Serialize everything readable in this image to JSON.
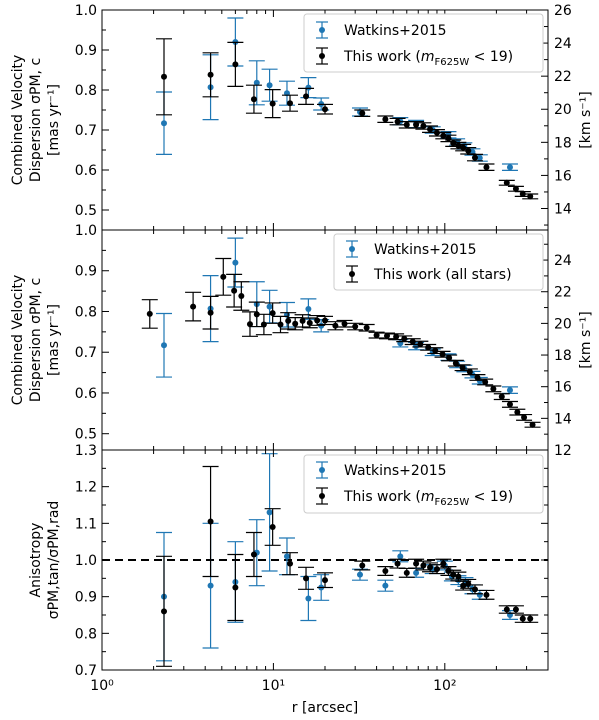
{
  "colors": {
    "watkins": "#1f77b4",
    "this_work": "#000000"
  },
  "chart_data": [
    {
      "type": "scatter",
      "xlim": [
        1,
        400
      ],
      "ylim": [
        0.45,
        1.0
      ],
      "xscale": "log",
      "ylabel_lines": [
        "Combined Velocity",
        "Dispersion σPM, c",
        "[mas yr⁻¹]"
      ],
      "right_ylabel": "[km s⁻¹]",
      "right_ylim": [
        12.7,
        26.0
      ],
      "yticks": [
        "0.5",
        "0.6",
        "0.7",
        "0.8",
        "0.9",
        "1.0"
      ],
      "right_yticks": [
        "14",
        "16",
        "18",
        "20",
        "22",
        "24",
        "26"
      ],
      "legend": {
        "position": "top-right",
        "entries": [
          "Watkins+2015",
          "This work (mF625W < 19)"
        ]
      },
      "series": [
        {
          "name": "Watkins+2015",
          "points": [
            {
              "x": 2.3,
              "y": 0.717,
              "e": 0.078
            },
            {
              "x": 4.3,
              "y": 0.807,
              "e": 0.081
            },
            {
              "x": 6.0,
              "y": 0.92,
              "e": 0.06
            },
            {
              "x": 8.0,
              "y": 0.818,
              "e": 0.055
            },
            {
              "x": 9.5,
              "y": 0.812,
              "e": 0.04
            },
            {
              "x": 12.0,
              "y": 0.792,
              "e": 0.03
            },
            {
              "x": 16.0,
              "y": 0.806,
              "e": 0.025
            },
            {
              "x": 19.0,
              "y": 0.765,
              "e": 0.015
            },
            {
              "x": 32.0,
              "y": 0.745,
              "e": 0.01
            },
            {
              "x": 55.0,
              "y": 0.722,
              "e": 0.009
            },
            {
              "x": 68.0,
              "y": 0.715,
              "e": 0.009
            },
            {
              "x": 85.0,
              "y": 0.7,
              "e": 0.008
            },
            {
              "x": 105.0,
              "y": 0.688,
              "e": 0.008
            },
            {
              "x": 118.0,
              "y": 0.67,
              "e": 0.008
            },
            {
              "x": 130.0,
              "y": 0.66,
              "e": 0.008
            },
            {
              "x": 145.0,
              "y": 0.645,
              "e": 0.008
            },
            {
              "x": 160.0,
              "y": 0.63,
              "e": 0.008
            },
            {
              "x": 240.0,
              "y": 0.607,
              "e": 0.008
            }
          ]
        },
        {
          "name": "This work (mF625W < 19)",
          "points": [
            {
              "x": 2.3,
              "y": 0.833,
              "e": 0.095
            },
            {
              "x": 4.3,
              "y": 0.838,
              "e": 0.055
            },
            {
              "x": 6.0,
              "y": 0.864,
              "e": 0.055
            },
            {
              "x": 7.7,
              "y": 0.777,
              "e": 0.035
            },
            {
              "x": 9.9,
              "y": 0.766,
              "e": 0.035
            },
            {
              "x": 12.5,
              "y": 0.767,
              "e": 0.02
            },
            {
              "x": 15.5,
              "y": 0.784,
              "e": 0.02
            },
            {
              "x": 20.0,
              "y": 0.752,
              "e": 0.012
            },
            {
              "x": 33.0,
              "y": 0.742,
              "e": 0.008
            },
            {
              "x": 45.0,
              "y": 0.727,
              "e": 0.008
            },
            {
              "x": 53.0,
              "y": 0.721,
              "e": 0.008
            },
            {
              "x": 60.0,
              "y": 0.713,
              "e": 0.008
            },
            {
              "x": 68.0,
              "y": 0.713,
              "e": 0.008
            },
            {
              "x": 75.0,
              "y": 0.71,
              "e": 0.008
            },
            {
              "x": 82.0,
              "y": 0.702,
              "e": 0.008
            },
            {
              "x": 90.0,
              "y": 0.693,
              "e": 0.008
            },
            {
              "x": 98.0,
              "y": 0.686,
              "e": 0.008
            },
            {
              "x": 105.0,
              "y": 0.679,
              "e": 0.008
            },
            {
              "x": 112.0,
              "y": 0.667,
              "e": 0.008
            },
            {
              "x": 120.0,
              "y": 0.661,
              "e": 0.008
            },
            {
              "x": 128.0,
              "y": 0.656,
              "e": 0.008
            },
            {
              "x": 137.0,
              "y": 0.648,
              "e": 0.008
            },
            {
              "x": 150.0,
              "y": 0.631,
              "e": 0.008
            },
            {
              "x": 175.0,
              "y": 0.607,
              "e": 0.008
            },
            {
              "x": 230.0,
              "y": 0.568,
              "e": 0.006
            },
            {
              "x": 260.0,
              "y": 0.553,
              "e": 0.006
            },
            {
              "x": 285.0,
              "y": 0.54,
              "e": 0.006
            },
            {
              "x": 315.0,
              "y": 0.534,
              "e": 0.006
            }
          ]
        }
      ]
    },
    {
      "type": "scatter",
      "xlim": [
        1,
        400
      ],
      "ylim": [
        0.46,
        1.0
      ],
      "xscale": "log",
      "ylabel_lines": [
        "Combined Velocity",
        "Dispersion σPM, c",
        "[mas yr⁻¹]"
      ],
      "right_ylabel": "[km s⁻¹]",
      "right_ylim": [
        12.0,
        25.9
      ],
      "yticks": [
        "0.5",
        "0.6",
        "0.7",
        "0.8",
        "0.9",
        "1.0"
      ],
      "right_yticks": [
        "12",
        "14",
        "16",
        "18",
        "20",
        "22",
        "24"
      ],
      "legend": {
        "position": "top-right",
        "entries": [
          "Watkins+2015",
          "This work (all stars)"
        ]
      },
      "series": [
        {
          "name": "Watkins+2015",
          "points": [
            {
              "x": 2.3,
              "y": 0.717,
              "e": 0.078
            },
            {
              "x": 4.3,
              "y": 0.807,
              "e": 0.081
            },
            {
              "x": 6.0,
              "y": 0.92,
              "e": 0.06
            },
            {
              "x": 8.0,
              "y": 0.818,
              "e": 0.055
            },
            {
              "x": 9.5,
              "y": 0.812,
              "e": 0.04
            },
            {
              "x": 12.0,
              "y": 0.792,
              "e": 0.03
            },
            {
              "x": 16.0,
              "y": 0.806,
              "e": 0.025
            },
            {
              "x": 19.0,
              "y": 0.765,
              "e": 0.015
            },
            {
              "x": 55.0,
              "y": 0.722,
              "e": 0.009
            },
            {
              "x": 68.0,
              "y": 0.715,
              "e": 0.009
            },
            {
              "x": 85.0,
              "y": 0.7,
              "e": 0.008
            },
            {
              "x": 105.0,
              "y": 0.688,
              "e": 0.008
            },
            {
              "x": 118.0,
              "y": 0.67,
              "e": 0.008
            },
            {
              "x": 130.0,
              "y": 0.66,
              "e": 0.008
            },
            {
              "x": 145.0,
              "y": 0.645,
              "e": 0.008
            },
            {
              "x": 160.0,
              "y": 0.63,
              "e": 0.008
            },
            {
              "x": 240.0,
              "y": 0.607,
              "e": 0.008
            }
          ]
        },
        {
          "name": "This work (all stars)",
          "points": [
            {
              "x": 1.9,
              "y": 0.794,
              "e": 0.035
            },
            {
              "x": 3.4,
              "y": 0.812,
              "e": 0.035
            },
            {
              "x": 4.3,
              "y": 0.797,
              "e": 0.04
            },
            {
              "x": 5.1,
              "y": 0.885,
              "e": 0.045
            },
            {
              "x": 5.9,
              "y": 0.851,
              "e": 0.04
            },
            {
              "x": 6.5,
              "y": 0.838,
              "e": 0.035
            },
            {
              "x": 7.3,
              "y": 0.769,
              "e": 0.03
            },
            {
              "x": 8.0,
              "y": 0.793,
              "e": 0.03
            },
            {
              "x": 8.8,
              "y": 0.768,
              "e": 0.025
            },
            {
              "x": 9.9,
              "y": 0.796,
              "e": 0.025
            },
            {
              "x": 11.0,
              "y": 0.768,
              "e": 0.02
            },
            {
              "x": 12.2,
              "y": 0.777,
              "e": 0.02
            },
            {
              "x": 13.4,
              "y": 0.77,
              "e": 0.015
            },
            {
              "x": 14.8,
              "y": 0.777,
              "e": 0.015
            },
            {
              "x": 16.3,
              "y": 0.772,
              "e": 0.012
            },
            {
              "x": 18.0,
              "y": 0.778,
              "e": 0.012
            },
            {
              "x": 20.0,
              "y": 0.778,
              "e": 0.01
            },
            {
              "x": 23.0,
              "y": 0.765,
              "e": 0.01
            },
            {
              "x": 26.0,
              "y": 0.77,
              "e": 0.008
            },
            {
              "x": 30.0,
              "y": 0.763,
              "e": 0.008
            },
            {
              "x": 35.0,
              "y": 0.76,
              "e": 0.008
            },
            {
              "x": 40.0,
              "y": 0.742,
              "e": 0.007
            },
            {
              "x": 46.0,
              "y": 0.74,
              "e": 0.007
            },
            {
              "x": 52.0,
              "y": 0.738,
              "e": 0.007
            },
            {
              "x": 58.0,
              "y": 0.733,
              "e": 0.007
            },
            {
              "x": 65.0,
              "y": 0.726,
              "e": 0.007
            },
            {
              "x": 72.0,
              "y": 0.72,
              "e": 0.007
            },
            {
              "x": 80.0,
              "y": 0.712,
              "e": 0.007
            },
            {
              "x": 88.0,
              "y": 0.704,
              "e": 0.007
            },
            {
              "x": 97.0,
              "y": 0.695,
              "e": 0.007
            },
            {
              "x": 106.0,
              "y": 0.686,
              "e": 0.007
            },
            {
              "x": 116.0,
              "y": 0.673,
              "e": 0.007
            },
            {
              "x": 127.0,
              "y": 0.662,
              "e": 0.007
            },
            {
              "x": 140.0,
              "y": 0.652,
              "e": 0.007
            },
            {
              "x": 155.0,
              "y": 0.638,
              "e": 0.007
            },
            {
              "x": 172.0,
              "y": 0.627,
              "e": 0.007
            },
            {
              "x": 192.0,
              "y": 0.61,
              "e": 0.007
            },
            {
              "x": 215.0,
              "y": 0.591,
              "e": 0.007
            },
            {
              "x": 240.0,
              "y": 0.572,
              "e": 0.007
            },
            {
              "x": 265.0,
              "y": 0.553,
              "e": 0.007
            },
            {
              "x": 290.0,
              "y": 0.54,
              "e": 0.007
            },
            {
              "x": 325.0,
              "y": 0.522,
              "e": 0.006
            }
          ]
        }
      ]
    },
    {
      "type": "scatter",
      "xlim": [
        1,
        400
      ],
      "ylim": [
        0.7,
        1.3
      ],
      "xscale": "log",
      "xlabel": "r [arcsec]",
      "xticks": [
        "10⁰",
        "10¹",
        "10²"
      ],
      "ylabel_lines": [
        "Anisotropy",
        "σPM,tan/σPM,rad"
      ],
      "yticks": [
        "0.7",
        "0.8",
        "0.9",
        "1.0",
        "1.1",
        "1.2",
        "1.3"
      ],
      "reference_line": 1.0,
      "legend": {
        "position": "top-right",
        "entries": [
          "Watkins+2015",
          "This work (mF625W < 19)"
        ]
      },
      "series": [
        {
          "name": "Watkins+2015",
          "points": [
            {
              "x": 2.3,
              "y": 0.9,
              "e": 0.175
            },
            {
              "x": 4.3,
              "y": 0.93,
              "e": 0.17
            },
            {
              "x": 6.0,
              "y": 0.94,
              "e": 0.11
            },
            {
              "x": 8.0,
              "y": 1.02,
              "e": 0.09
            },
            {
              "x": 9.5,
              "y": 1.13,
              "e": 0.16
            },
            {
              "x": 12.0,
              "y": 1.01,
              "e": 0.05
            },
            {
              "x": 16.0,
              "y": 0.895,
              "e": 0.06
            },
            {
              "x": 19.0,
              "y": 0.925,
              "e": 0.035
            },
            {
              "x": 32.0,
              "y": 0.96,
              "e": 0.015
            },
            {
              "x": 45.0,
              "y": 0.93,
              "e": 0.015
            },
            {
              "x": 55.0,
              "y": 1.01,
              "e": 0.015
            },
            {
              "x": 68.0,
              "y": 0.965,
              "e": 0.012
            },
            {
              "x": 85.0,
              "y": 0.975,
              "e": 0.012
            },
            {
              "x": 100.0,
              "y": 0.985,
              "e": 0.012
            },
            {
              "x": 110.0,
              "y": 0.955,
              "e": 0.012
            },
            {
              "x": 120.0,
              "y": 0.945,
              "e": 0.012
            },
            {
              "x": 132.0,
              "y": 0.94,
              "e": 0.012
            },
            {
              "x": 145.0,
              "y": 0.92,
              "e": 0.012
            },
            {
              "x": 160.0,
              "y": 0.905,
              "e": 0.012
            },
            {
              "x": 240.0,
              "y": 0.85,
              "e": 0.012
            }
          ]
        },
        {
          "name": "This work (mF625W < 19)",
          "points": [
            {
              "x": 2.3,
              "y": 0.86,
              "e": 0.15
            },
            {
              "x": 4.3,
              "y": 1.105,
              "e": 0.15
            },
            {
              "x": 6.0,
              "y": 0.925,
              "e": 0.09
            },
            {
              "x": 7.7,
              "y": 1.015,
              "e": 0.06
            },
            {
              "x": 9.9,
              "y": 1.09,
              "e": 0.05
            },
            {
              "x": 12.5,
              "y": 0.99,
              "e": 0.03
            },
            {
              "x": 15.5,
              "y": 0.95,
              "e": 0.03
            },
            {
              "x": 20.0,
              "y": 0.945,
              "e": 0.02
            },
            {
              "x": 33.0,
              "y": 0.985,
              "e": 0.012
            },
            {
              "x": 45.0,
              "y": 0.97,
              "e": 0.012
            },
            {
              "x": 53.0,
              "y": 0.99,
              "e": 0.012
            },
            {
              "x": 60.0,
              "y": 0.965,
              "e": 0.012
            },
            {
              "x": 68.0,
              "y": 0.99,
              "e": 0.012
            },
            {
              "x": 75.0,
              "y": 0.985,
              "e": 0.012
            },
            {
              "x": 82.0,
              "y": 0.98,
              "e": 0.012
            },
            {
              "x": 90.0,
              "y": 0.975,
              "e": 0.012
            },
            {
              "x": 98.0,
              "y": 0.99,
              "e": 0.012
            },
            {
              "x": 105.0,
              "y": 0.97,
              "e": 0.012
            },
            {
              "x": 112.0,
              "y": 0.96,
              "e": 0.012
            },
            {
              "x": 120.0,
              "y": 0.955,
              "e": 0.012
            },
            {
              "x": 128.0,
              "y": 0.93,
              "e": 0.012
            },
            {
              "x": 137.0,
              "y": 0.935,
              "e": 0.012
            },
            {
              "x": 150.0,
              "y": 0.92,
              "e": 0.012
            },
            {
              "x": 175.0,
              "y": 0.905,
              "e": 0.012
            },
            {
              "x": 230.0,
              "y": 0.865,
              "e": 0.01
            },
            {
              "x": 260.0,
              "y": 0.865,
              "e": 0.01
            },
            {
              "x": 285.0,
              "y": 0.84,
              "e": 0.01
            },
            {
              "x": 315.0,
              "y": 0.84,
              "e": 0.01
            }
          ]
        }
      ]
    }
  ]
}
